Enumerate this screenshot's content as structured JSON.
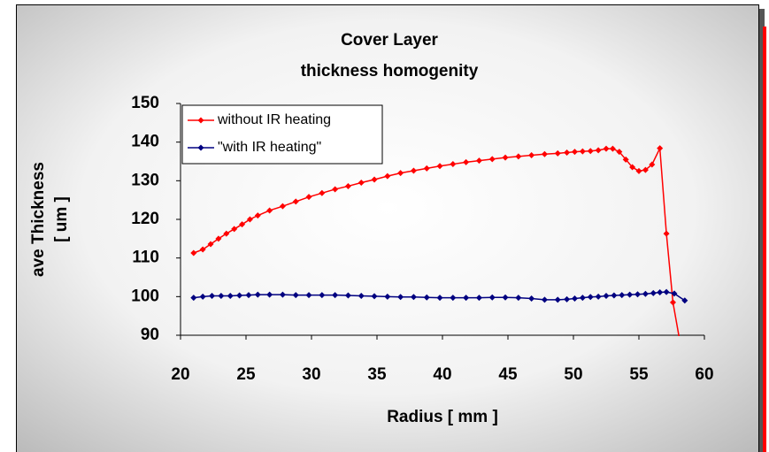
{
  "chart_data": {
    "type": "line",
    "title": [
      "Cover Layer",
      "thickness homogenity"
    ],
    "xlabel": "Radius [ mm ]",
    "ylabel": [
      "ave Thickness",
      "[ um ]"
    ],
    "xlim": [
      20,
      60
    ],
    "xticks": [
      20,
      25,
      30,
      35,
      40,
      45,
      50,
      55,
      60
    ],
    "ylim": [
      90,
      150
    ],
    "yticks": [
      90,
      100,
      110,
      120,
      130,
      140,
      150
    ],
    "grid": false,
    "legend": "upper left",
    "series": [
      {
        "name": "without IR heating",
        "color": "#ff0000",
        "x": [
          21,
          21.7,
          22.3,
          22.9,
          23.5,
          24.1,
          24.7,
          25.3,
          25.9,
          26.8,
          27.8,
          28.8,
          29.8,
          30.8,
          31.8,
          32.8,
          33.8,
          34.8,
          35.8,
          36.8,
          37.8,
          38.8,
          39.8,
          40.8,
          41.8,
          42.8,
          43.8,
          44.8,
          45.8,
          46.8,
          47.8,
          48.8,
          49.5,
          50.1,
          50.7,
          51.3,
          51.9,
          52.5,
          53.0,
          53.5,
          54.0,
          54.5,
          55.0,
          55.5,
          56.0,
          56.6,
          57.1,
          57.6,
          58.2
        ],
        "values": [
          111.3,
          112.2,
          113.6,
          115,
          116.3,
          117.5,
          118.7,
          120,
          121,
          122.3,
          123.4,
          124.6,
          125.8,
          126.8,
          127.8,
          128.6,
          129.5,
          130.3,
          131.2,
          132,
          132.6,
          133.2,
          133.8,
          134.3,
          134.8,
          135.2,
          135.6,
          136,
          136.3,
          136.6,
          136.9,
          137.1,
          137.3,
          137.5,
          137.6,
          137.7,
          137.9,
          138.3,
          138.3,
          137.5,
          135.5,
          133.5,
          132.5,
          132.8,
          134.2,
          138.4,
          116.3,
          98.5,
          87
        ]
      },
      {
        "name": "\"with IR heating\"",
        "color": "#000080",
        "x": [
          21,
          21.7,
          22.4,
          23.1,
          23.8,
          24.5,
          25.2,
          25.9,
          26.8,
          27.8,
          28.8,
          29.8,
          30.8,
          31.8,
          32.8,
          33.8,
          34.8,
          35.8,
          36.8,
          37.8,
          38.8,
          39.8,
          40.8,
          41.8,
          42.8,
          43.8,
          44.8,
          45.8,
          46.8,
          47.8,
          48.8,
          49.5,
          50.1,
          50.7,
          51.3,
          51.9,
          52.5,
          53.1,
          53.7,
          54.3,
          54.9,
          55.5,
          56.1,
          56.6,
          57.1,
          57.7,
          58.5
        ],
        "values": [
          99.7,
          100,
          100.2,
          100.2,
          100.2,
          100.3,
          100.4,
          100.5,
          100.5,
          100.5,
          100.4,
          100.4,
          100.4,
          100.4,
          100.3,
          100.2,
          100.1,
          100,
          99.9,
          99.9,
          99.8,
          99.7,
          99.7,
          99.7,
          99.7,
          99.8,
          99.8,
          99.7,
          99.5,
          99.2,
          99.2,
          99.3,
          99.5,
          99.7,
          99.9,
          100,
          100.2,
          100.3,
          100.4,
          100.5,
          100.6,
          100.7,
          100.9,
          101.1,
          101.2,
          100.8,
          99
        ]
      }
    ]
  }
}
